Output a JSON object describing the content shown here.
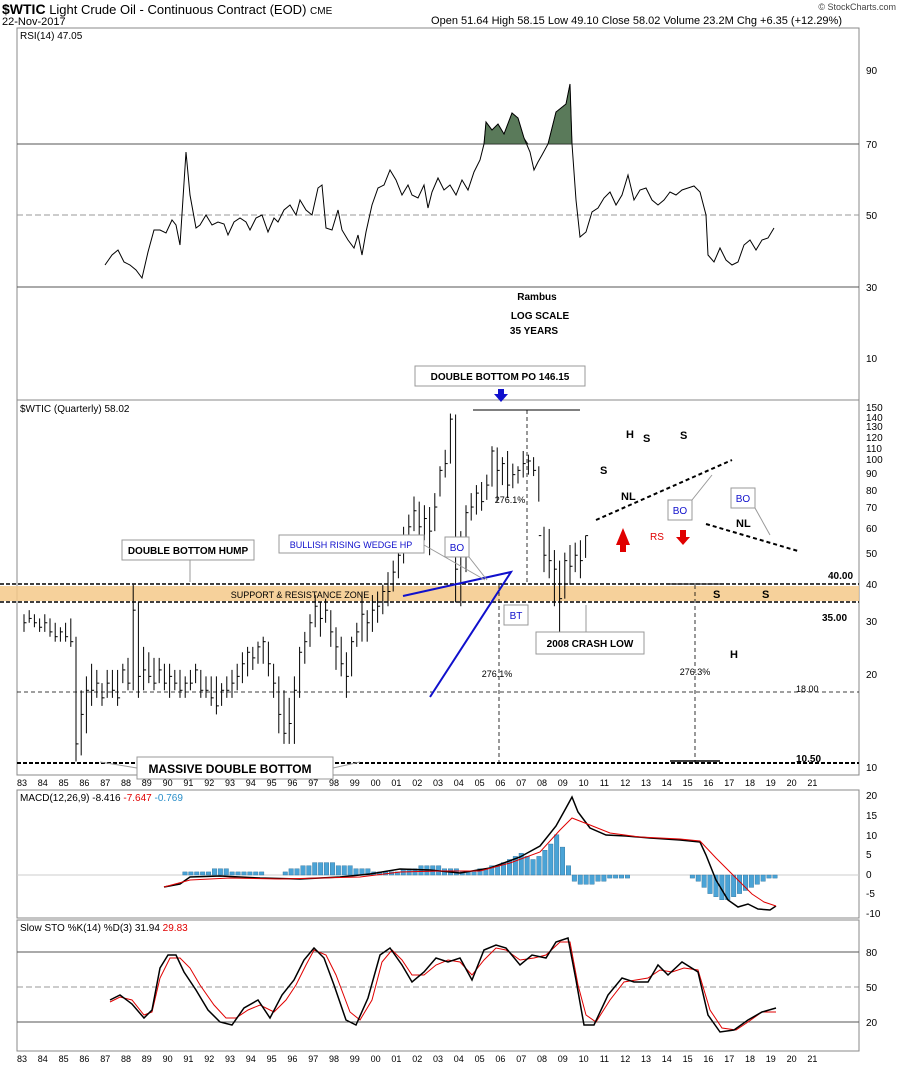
{
  "header": {
    "symbol": "$WTIC",
    "name": "Light Crude Oil - Continuous Contract (EOD)",
    "exchange": "CME",
    "date": "22-Nov-2017",
    "quote": "Open 51.64  High 58.15  Low 49.10  Close 58.02  Volume 23.2M  Chg +6.35 (+12.29%)",
    "logo": "© StockCharts.com"
  },
  "rsi_panel": {
    "legend": "RSI(14) 47.05",
    "axis_ticks": [
      "90",
      "70",
      "50",
      "30",
      "10"
    ],
    "notes": [
      "Rambus",
      "LOG SCALE",
      "35 YEARS"
    ]
  },
  "price_panel": {
    "legend": "$WTIC (Quarterly) 58.02",
    "axis_ticks": [
      "150",
      "140",
      "130",
      "120",
      "110",
      "100",
      "90",
      "80",
      "70",
      "60",
      "50",
      "40",
      "30",
      "20",
      "10"
    ],
    "x_ticks": [
      "83",
      "84",
      "85",
      "86",
      "87",
      "88",
      "89",
      "90",
      "91",
      "92",
      "93",
      "94",
      "95",
      "96",
      "97",
      "98",
      "99",
      "00",
      "01",
      "02",
      "03",
      "04",
      "05",
      "06",
      "07",
      "08",
      "09",
      "10",
      "11",
      "12",
      "13",
      "14",
      "15",
      "16",
      "17",
      "18",
      "19",
      "20",
      "21"
    ],
    "annotations": {
      "double_bottom_po": "DOUBLE BOTTOM PO 146.15",
      "double_bottom_hump": "DOUBLE BOTTOM HUMP",
      "bullish_wedge": "BULLISH RISING WEDGE HP",
      "bo": "BO",
      "bt": "BT",
      "support_zone": "SUPPORT & RESISTANCE ZONE",
      "crash_low": "2008 CRASH LOW",
      "massive_double_bottom": "MASSIVE DOUBLE BOTTOM",
      "pct1": "276.1%",
      "pct2": "276.1%",
      "pct3": "276.3%",
      "level_40": "40.00",
      "level_35": "35.00",
      "level_18": "18.00",
      "level_10": "10.50",
      "h": "H",
      "s": "S",
      "nl": "NL",
      "rs": "RS"
    }
  },
  "macd_panel": {
    "legend_label": "MACD(12,26,9)",
    "legend_macd": "-8.416",
    "legend_signal": "-7.647",
    "legend_hist": "-0.769",
    "axis_ticks": [
      "20",
      "15",
      "10",
      "5",
      "0",
      "-5",
      "-10"
    ]
  },
  "sto_panel": {
    "legend_label": "Slow STO %K(14) %D(3)",
    "legend_k": "31.94",
    "legend_d": "29.83",
    "axis_ticks": [
      "80",
      "50",
      "20"
    ]
  },
  "colors": {
    "rsi_fill": "#5a7a5a",
    "zone": "#f5c98a",
    "wedge": "#1010cc",
    "arrow_red": "#e00000",
    "macd_hist": "#4aa3d6",
    "signal": "#e00000"
  },
  "chart_data": {
    "type": "ohlc",
    "title": "$WTIC (Quarterly)",
    "scale": "log",
    "ylim": [
      10,
      150
    ],
    "x_range": [
      "1983",
      "2021"
    ],
    "horizontal_levels": [
      40.0,
      35.0,
      18.0,
      10.5
    ],
    "close": [
      30,
      31,
      29,
      27,
      12,
      18,
      16,
      20,
      35,
      20,
      19,
      17,
      15,
      17,
      19,
      25,
      14,
      12,
      25,
      33,
      20,
      30,
      33,
      45,
      66,
      92,
      45,
      75,
      95,
      98,
      97,
      92,
      50,
      45,
      55,
      58
    ],
    "rsi": [
      37,
      42,
      35,
      33,
      46,
      48,
      67,
      47,
      48,
      46,
      50,
      47,
      46,
      50,
      45,
      48,
      42,
      37,
      56,
      52,
      60,
      66,
      80,
      86,
      45,
      52,
      55,
      65,
      52,
      54,
      53,
      49,
      38,
      37,
      42,
      47
    ],
    "macd": [
      -3,
      -1.5,
      -1,
      -1.2,
      -1,
      -0.5,
      0,
      0.5,
      1,
      3,
      8,
      15,
      20,
      5,
      8,
      9,
      8,
      5,
      -8,
      -9,
      -8.4
    ],
    "stoch_k": [
      35,
      45,
      30,
      75,
      80,
      40,
      20,
      75,
      80,
      25,
      70,
      80,
      40,
      35,
      80,
      85,
      20,
      40,
      65,
      55,
      20,
      25,
      31.94
    ],
    "stoch_d": [
      35,
      40,
      35,
      70,
      75,
      45,
      25,
      70,
      75,
      30,
      65,
      75,
      45,
      40,
      75,
      80,
      25,
      35,
      60,
      55,
      25,
      25,
      29.83
    ]
  }
}
